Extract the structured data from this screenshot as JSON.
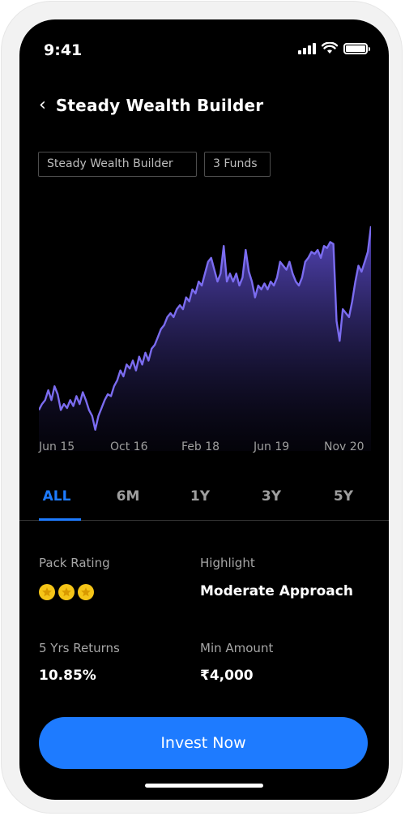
{
  "status_bar": {
    "time": "9:41"
  },
  "header": {
    "title": "Steady Wealth Builder"
  },
  "chips": {
    "pack_name": "Steady Wealth Builder",
    "fund_count": "3 Funds"
  },
  "chart_data": {
    "type": "area",
    "x_tick_labels": [
      "Jun 15",
      "Oct 16",
      "Feb 18",
      "Jun 19",
      "Nov 20"
    ],
    "line_color": "#7b6cf0",
    "fill_color_top": "#5b4bc8",
    "y_relative": [
      0.15,
      0.18,
      0.2,
      0.25,
      0.2,
      0.27,
      0.23,
      0.15,
      0.18,
      0.16,
      0.2,
      0.17,
      0.22,
      0.18,
      0.24,
      0.2,
      0.15,
      0.12,
      0.05,
      0.12,
      0.16,
      0.2,
      0.23,
      0.22,
      0.27,
      0.3,
      0.35,
      0.32,
      0.38,
      0.36,
      0.4,
      0.35,
      0.42,
      0.38,
      0.44,
      0.4,
      0.46,
      0.48,
      0.52,
      0.56,
      0.58,
      0.62,
      0.64,
      0.62,
      0.66,
      0.68,
      0.66,
      0.72,
      0.7,
      0.76,
      0.74,
      0.8,
      0.78,
      0.84,
      0.9,
      0.92,
      0.86,
      0.8,
      0.84,
      0.98,
      0.8,
      0.84,
      0.8,
      0.84,
      0.78,
      0.82,
      0.96,
      0.85,
      0.8,
      0.72,
      0.78,
      0.76,
      0.79,
      0.76,
      0.8,
      0.78,
      0.82,
      0.9,
      0.88,
      0.86,
      0.9,
      0.84,
      0.8,
      0.78,
      0.82,
      0.9,
      0.92,
      0.95,
      0.94,
      0.96,
      0.92,
      0.98,
      0.97,
      1.0,
      0.99,
      0.6,
      0.5,
      0.66,
      0.64,
      0.62,
      0.7,
      0.8,
      0.88,
      0.85,
      0.9,
      0.95,
      1.08
    ]
  },
  "tabs": [
    "ALL",
    "6M",
    "1Y",
    "3Y",
    "5Y"
  ],
  "active_tab": "ALL",
  "details": {
    "pack_rating_label": "Pack Rating",
    "pack_rating_stars": 3,
    "highlight_label": "Highlight",
    "highlight_value": "Moderate Approach",
    "returns_label": "5 Yrs Returns",
    "returns_value": "10.85%",
    "min_amount_label": "Min Amount",
    "min_amount_value": "₹4,000"
  },
  "cta": {
    "invest_label": "Invest Now"
  },
  "colors": {
    "accent": "#1e7bff",
    "star": "#f5c518"
  }
}
